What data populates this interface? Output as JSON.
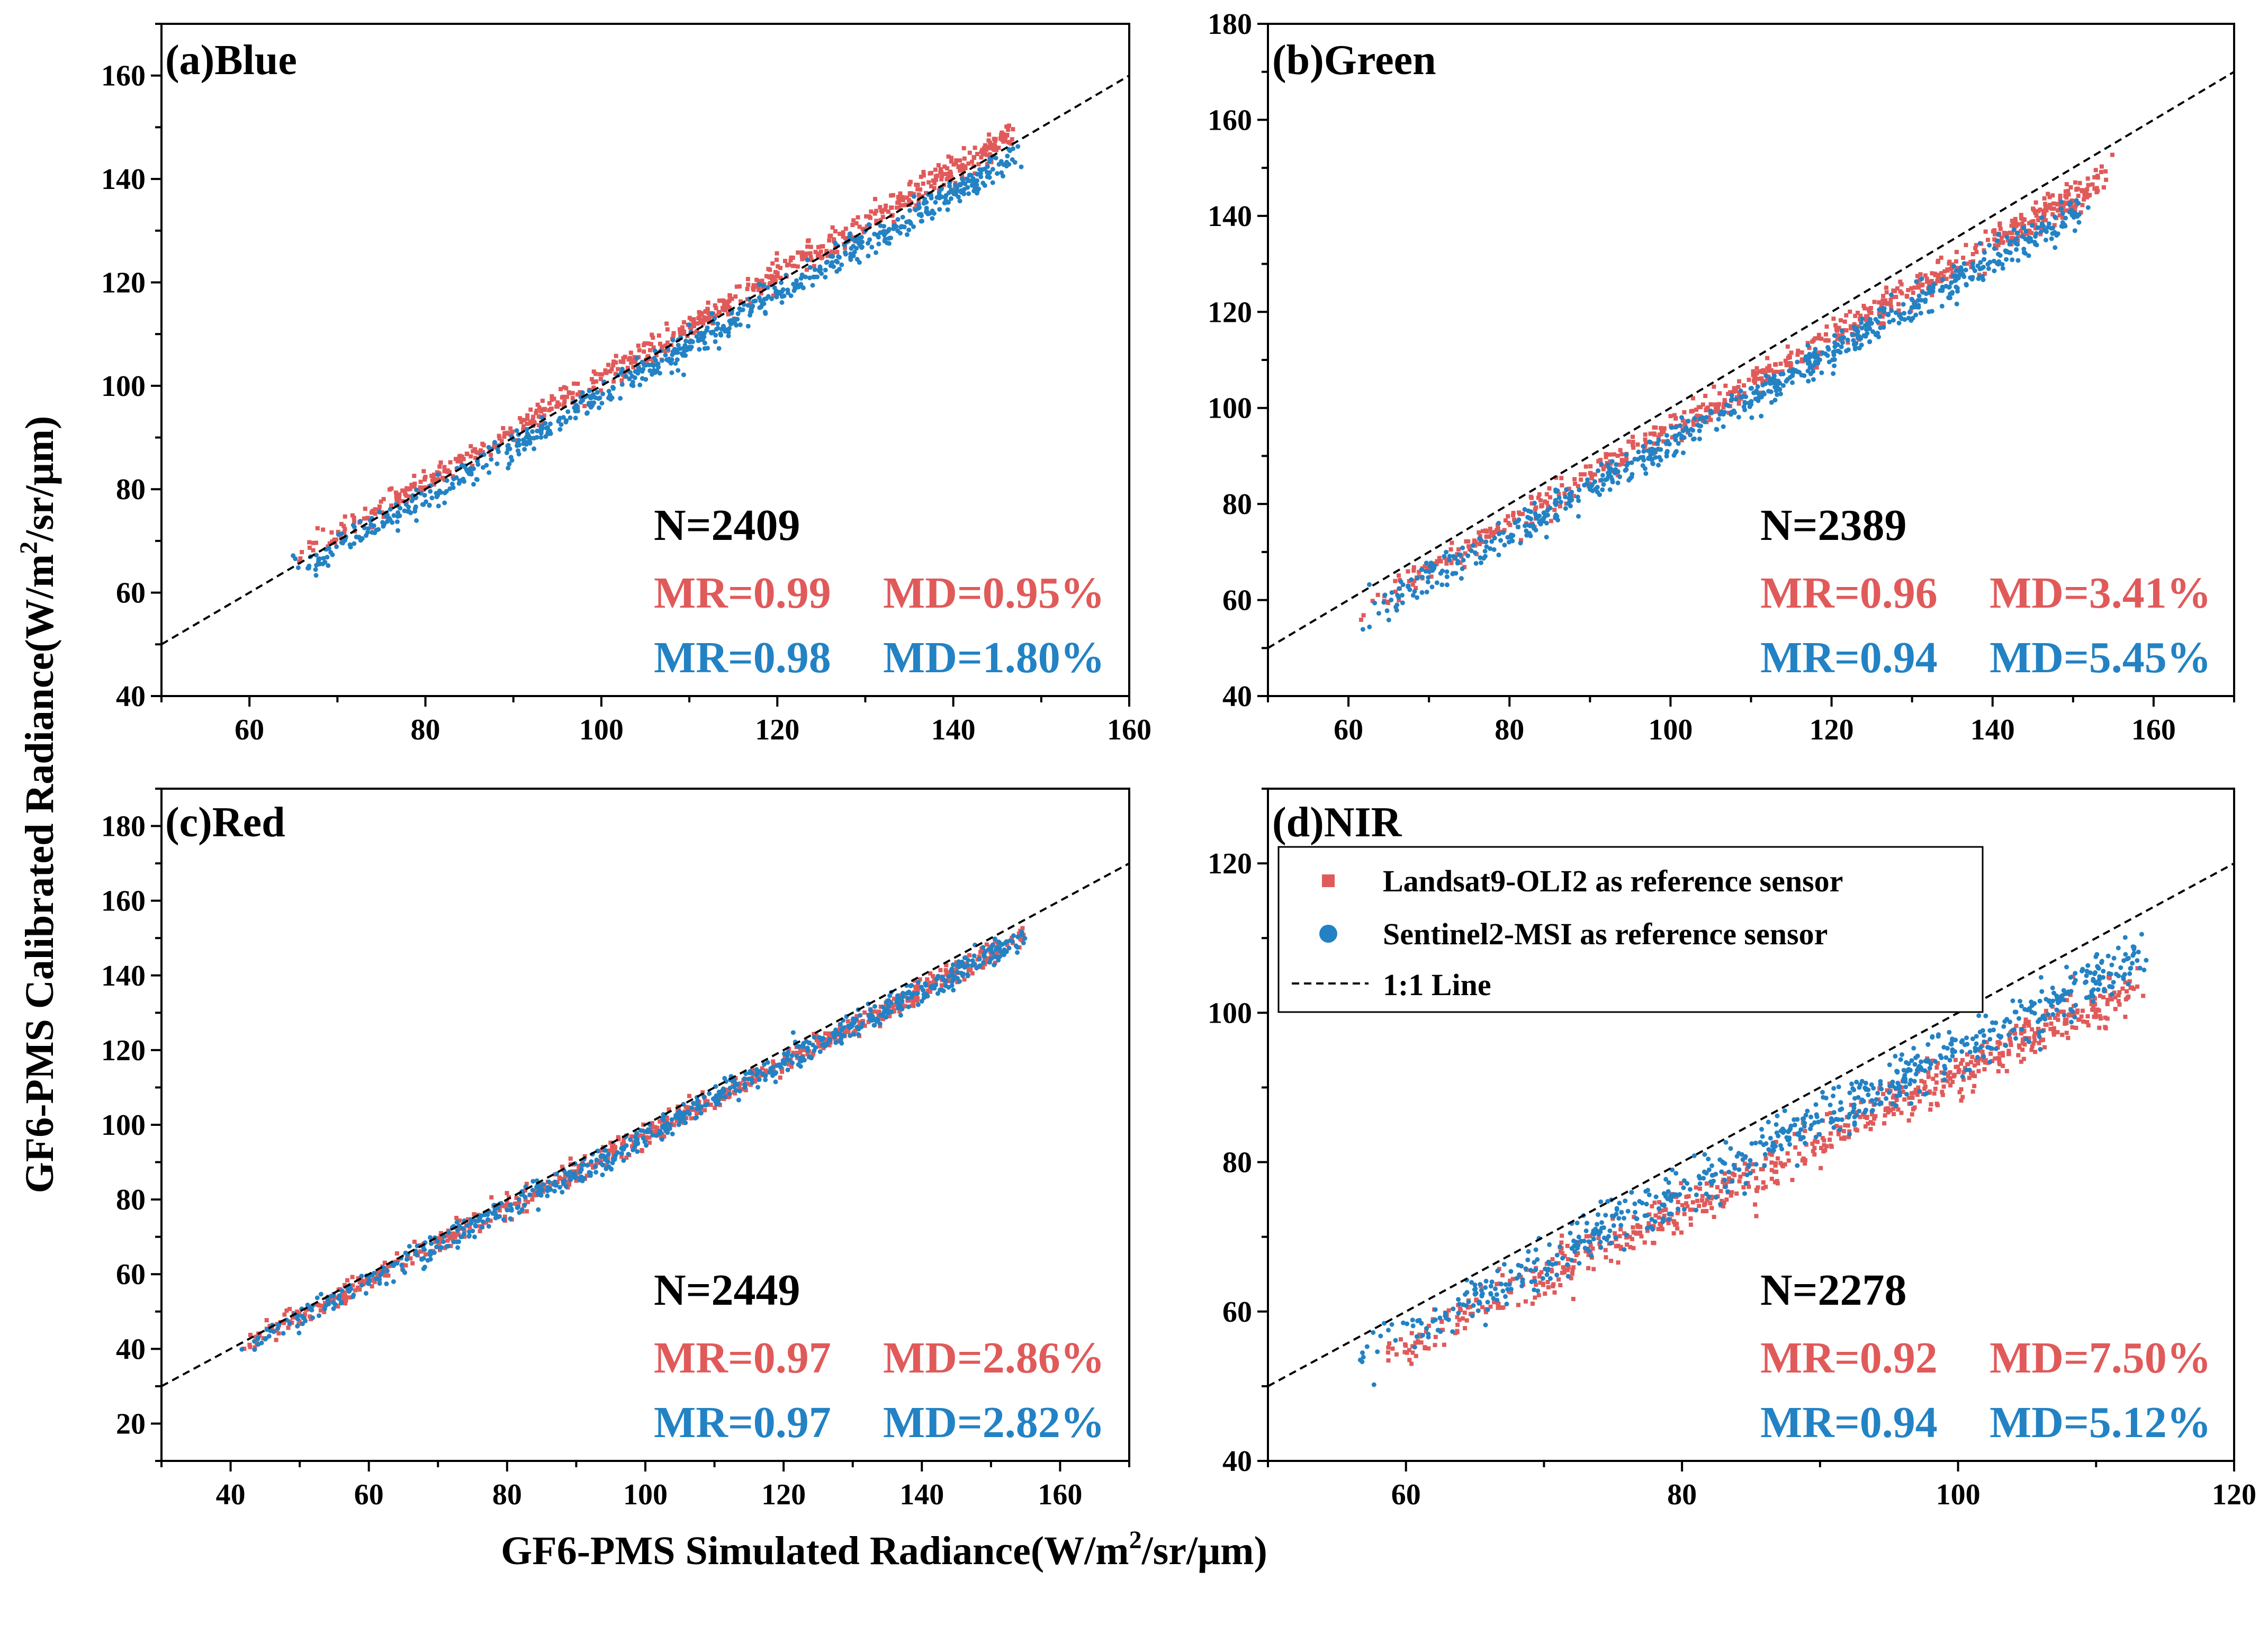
{
  "figure": {
    "xlabel_prefix": "GF6-PMS Simulated Radiance(W/m",
    "xlabel_sup": "2",
    "xlabel_suffix": "/sr/μm)",
    "ylabel_prefix": "GF6-PMS Calibrated Radiance(W/m",
    "ylabel_sup": "2",
    "ylabel_suffix": "/sr/μm)"
  },
  "colors": {
    "landsat": "#e05a5a",
    "sentinel": "#2382c4",
    "line": "#000000"
  },
  "legend": {
    "landsat_label": "Landsat9-OLI2 as reference sensor",
    "sentinel_label": "Sentinel2-MSI as reference sensor",
    "line_label": "1:1 Line"
  },
  "chart_data": [
    {
      "type": "scatter",
      "title": "(a)Blue",
      "xlim": [
        50,
        160
      ],
      "ylim": [
        40,
        170
      ],
      "xticks": [
        60,
        80,
        100,
        120,
        140,
        160
      ],
      "yticks": [
        40,
        60,
        80,
        100,
        120,
        140,
        160
      ],
      "stats": {
        "n": "N=2409",
        "mr_landsat": "MR=0.99",
        "md_landsat": "MD=0.95%",
        "mr_sentinel": "MR=0.98",
        "md_sentinel": "MD=1.80%"
      },
      "series": [
        {
          "name": "Landsat9-OLI2 as reference sensor",
          "x_range": [
            65,
            147
          ],
          "slope": 1.005,
          "offset": 0.9,
          "spread": 1.3
        },
        {
          "name": "Sentinel2-MSI as reference sensor",
          "x_range": [
            65,
            147
          ],
          "slope": 0.985,
          "offset": -0.5,
          "spread": 1.4
        }
      ],
      "reference_line": {
        "x": [
          50,
          160
        ],
        "y": [
          50,
          160
        ]
      }
    },
    {
      "type": "scatter",
      "title": "(b)Green",
      "xlim": [
        50,
        170
      ],
      "ylim": [
        40,
        180
      ],
      "xticks": [
        60,
        80,
        100,
        120,
        140,
        160
      ],
      "yticks": [
        40,
        60,
        80,
        100,
        120,
        140,
        160,
        180
      ],
      "stats": {
        "n": "N=2389",
        "mr_landsat": "MR=0.96",
        "md_landsat": "MD=3.41%",
        "mr_sentinel": "MR=0.94",
        "md_sentinel": "MD=5.45%"
      },
      "series": [
        {
          "name": "Landsat9-OLI2 as reference sensor",
          "x_range": [
            62,
            154
          ],
          "slope": 0.965,
          "offset": -1.0,
          "spread": 1.6
        },
        {
          "name": "Sentinel2-MSI as reference sensor",
          "x_range": [
            62,
            151
          ],
          "slope": 0.945,
          "offset": -1.8,
          "spread": 1.8
        }
      ],
      "reference_line": {
        "x": [
          50,
          170
        ],
        "y": [
          50,
          170
        ]
      }
    },
    {
      "type": "scatter",
      "title": "(c)Red",
      "xlim": [
        30,
        170
      ],
      "ylim": [
        10,
        190
      ],
      "xticks": [
        40,
        60,
        80,
        100,
        120,
        140,
        160
      ],
      "yticks": [
        20,
        40,
        60,
        80,
        100,
        120,
        140,
        160,
        180
      ],
      "stats": {
        "n": "N=2449",
        "mr_landsat": "MR=0.97",
        "md_landsat": "MD=2.86%",
        "mr_sentinel": "MR=0.97",
        "md_sentinel": "MD=2.82%"
      },
      "series": [
        {
          "name": "Landsat9-OLI2 as reference sensor",
          "x_range": [
            42,
            155
          ],
          "slope": 0.97,
          "offset": 0.3,
          "spread": 1.5
        },
        {
          "name": "Sentinel2-MSI as reference sensor",
          "x_range": [
            42,
            155
          ],
          "slope": 0.97,
          "offset": 0.0,
          "spread": 1.7
        }
      ],
      "reference_line": {
        "x": [
          30,
          170
        ],
        "y": [
          30,
          170
        ]
      }
    },
    {
      "type": "scatter",
      "title": "(d)NIR",
      "xlim": [
        50,
        120
      ],
      "ylim": [
        40,
        130
      ],
      "xticks": [
        60,
        80,
        100,
        120
      ],
      "yticks": [
        40,
        60,
        80,
        100,
        120
      ],
      "stats": {
        "n": "N=2278",
        "mr_landsat": "MR=0.92",
        "md_landsat": "MD=7.50%",
        "mr_sentinel": "MR=0.94",
        "md_sentinel": "MD=5.12%"
      },
      "series": [
        {
          "name": "Landsat9-OLI2 as reference sensor",
          "x_range": [
            57,
            113
          ],
          "slope": 0.92,
          "offset": 0.0,
          "spread": 1.6
        },
        {
          "name": "Sentinel2-MSI as reference sensor",
          "x_range": [
            57,
            113
          ],
          "slope": 0.945,
          "offset": 0.5,
          "spread": 1.7
        }
      ],
      "reference_line": {
        "x": [
          50,
          120
        ],
        "y": [
          50,
          120
        ]
      }
    }
  ]
}
